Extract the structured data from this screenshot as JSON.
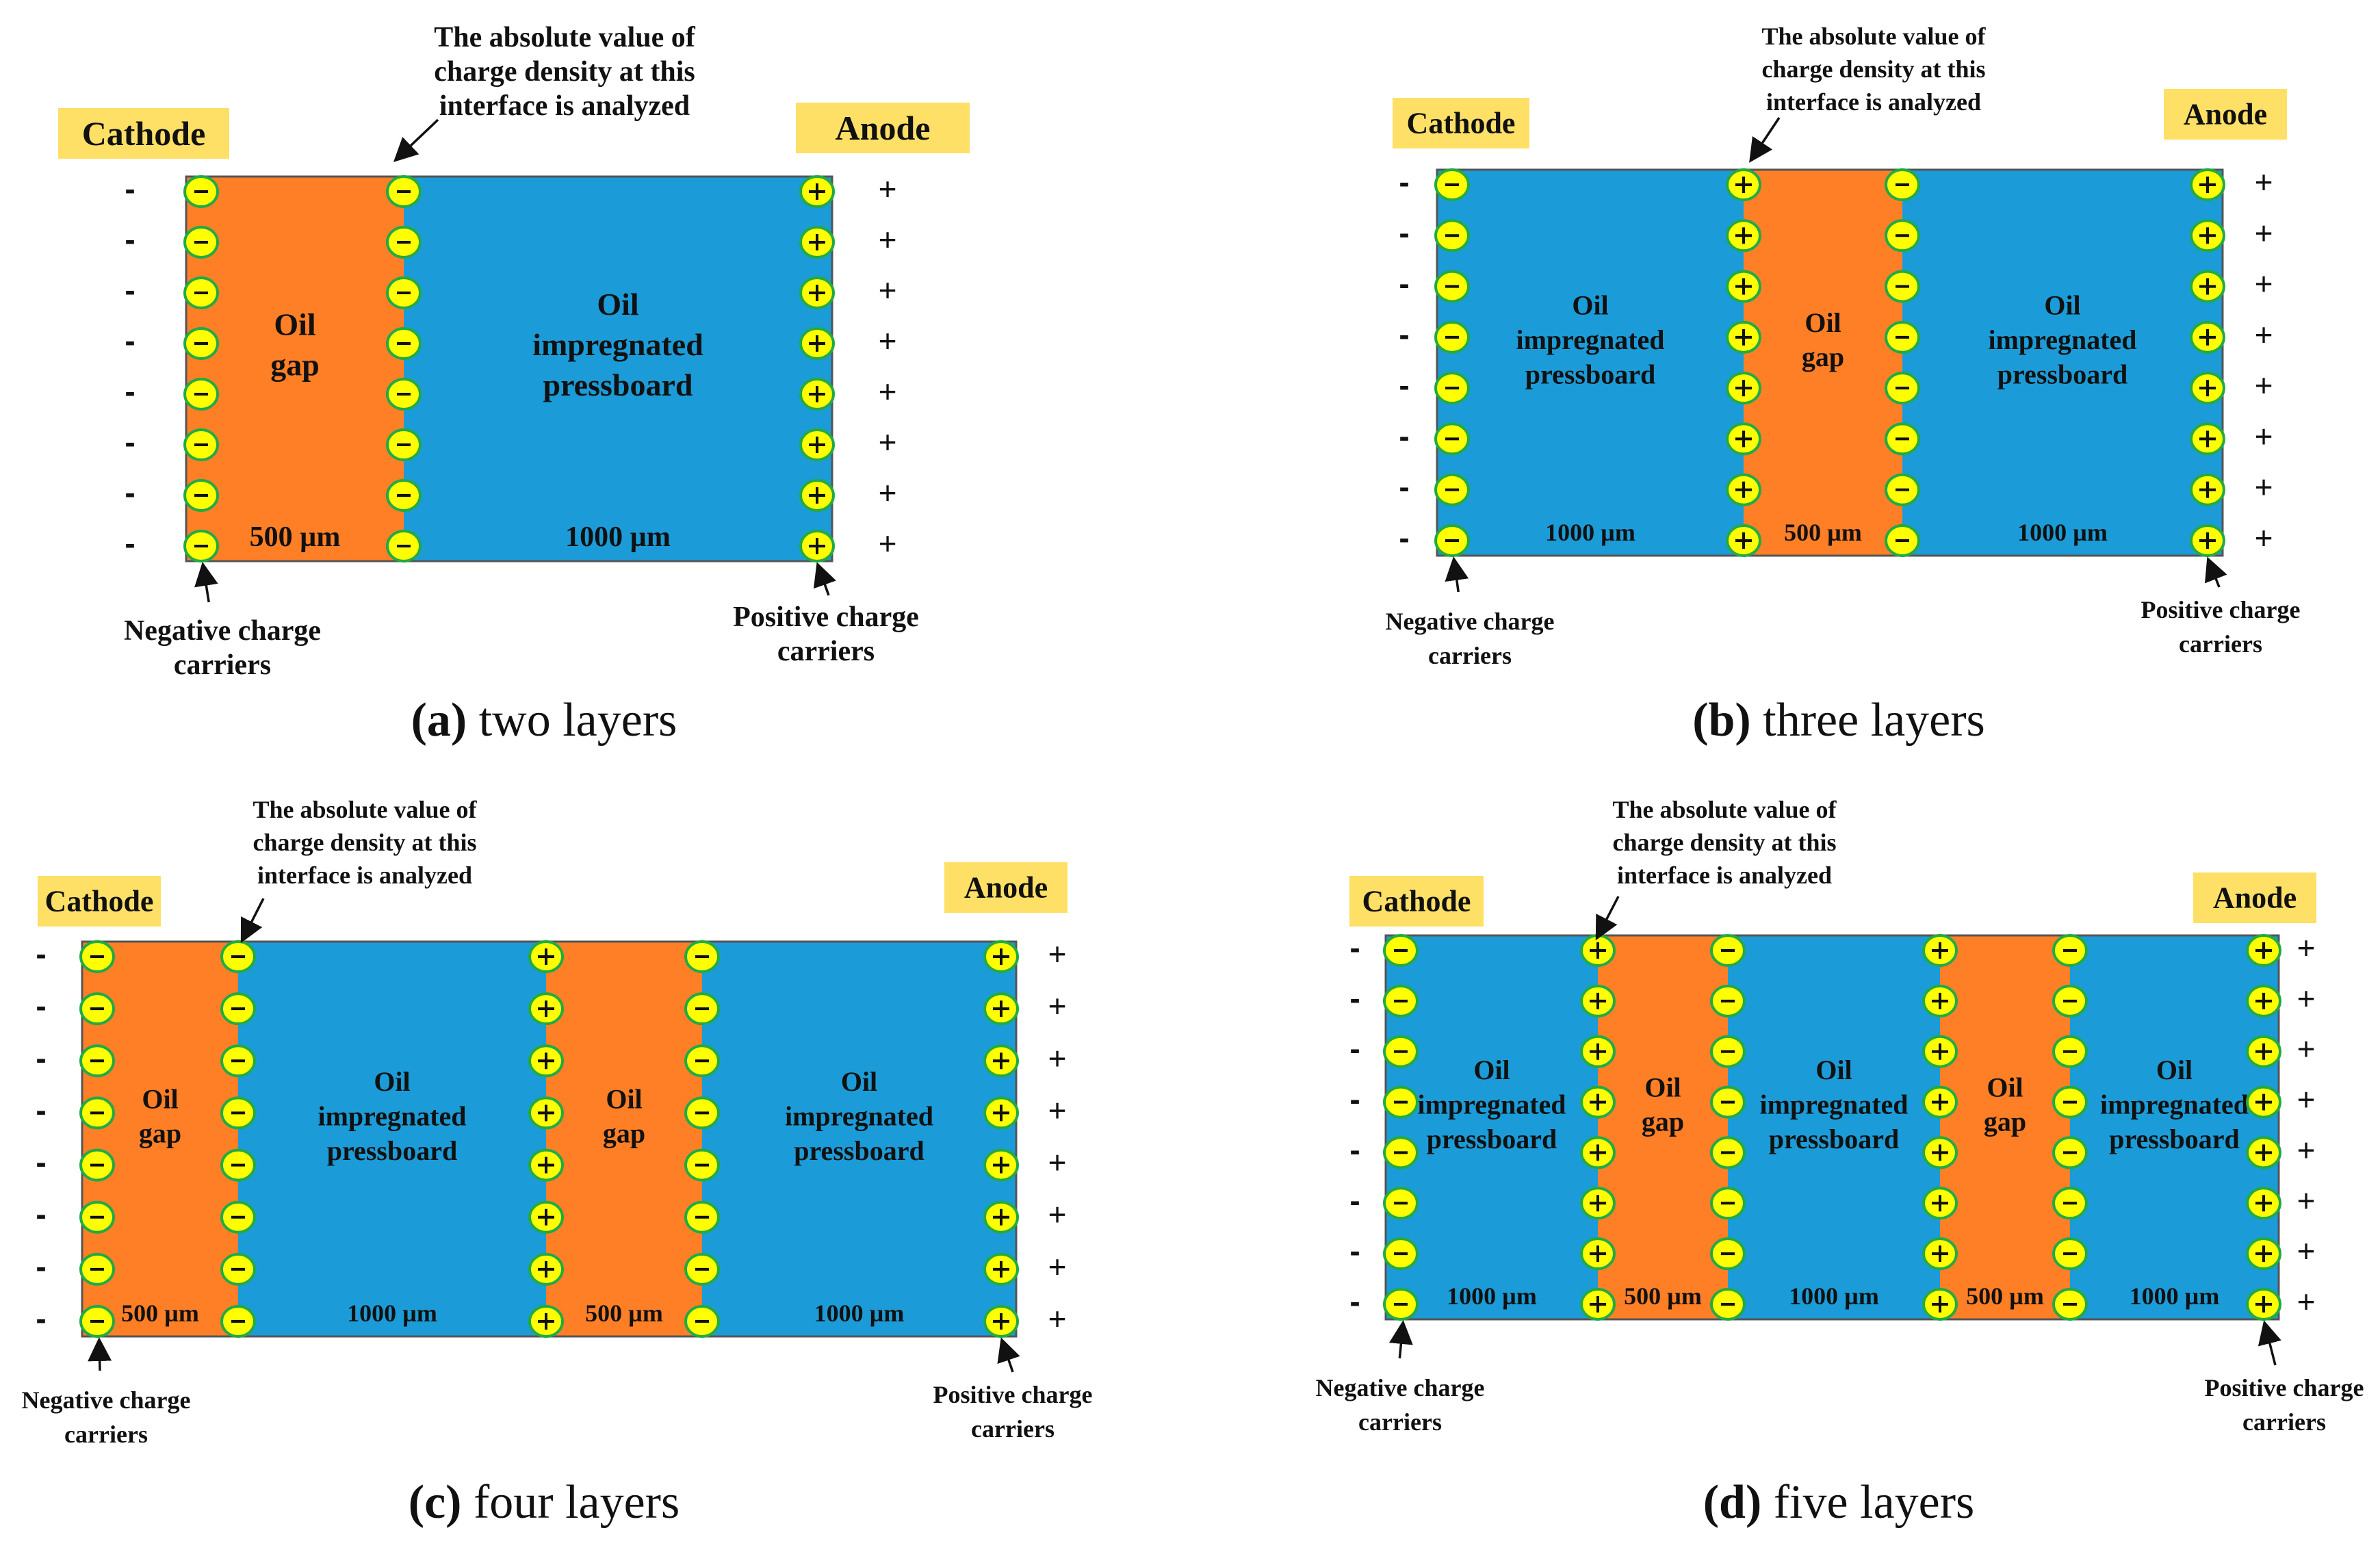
{
  "labels": {
    "cathode": "Cathode",
    "anode": "Anode",
    "oil_gap": [
      "Oil",
      "gap"
    ],
    "pressboard": [
      "Oil",
      "impregnated",
      "pressboard"
    ],
    "gap_thickness": "500 µm",
    "board_thickness": "1000 µm",
    "interface_note": [
      "The absolute value of",
      "charge density at this",
      "interface is analyzed"
    ],
    "negative_carriers": [
      "Negative charge",
      "carriers"
    ],
    "positive_carriers": [
      "Positive charge",
      "carriers"
    ],
    "minus_sign": "-",
    "plus_sign": "+"
  },
  "panels": [
    {
      "id": "a",
      "caption_letter": "(a)",
      "caption_text": " two layers",
      "layers": [
        "gap",
        "board"
      ]
    },
    {
      "id": "b",
      "caption_letter": "(b)",
      "caption_text": " three layers",
      "layers": [
        "board",
        "gap",
        "board"
      ]
    },
    {
      "id": "c",
      "caption_letter": "(c)",
      "caption_text": " four layers",
      "layers": [
        "gap",
        "board",
        "gap",
        "board"
      ]
    },
    {
      "id": "d",
      "caption_letter": "(d)",
      "caption_text": " five layers",
      "layers": [
        "board",
        "gap",
        "board",
        "gap",
        "board"
      ]
    }
  ],
  "colors": {
    "oil_gap": "#FF7F27",
    "pressboard": "#1B9CD8",
    "carrier_fill": "#FFFF00",
    "carrier_ring": "#22AA44",
    "label_box": "#FFE066",
    "outline": "#555555",
    "text": "#111111"
  }
}
